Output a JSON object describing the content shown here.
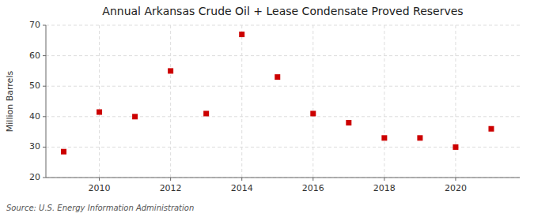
{
  "chart_data": {
    "type": "scatter",
    "title": "Annual Arkansas Crude Oil + Lease Condensate Proved Reserves",
    "y_label": "Million Barrels",
    "annotations": [
      "Source: U.S. Energy Information Administration"
    ],
    "x": [
      2009,
      2010,
      2011,
      2012,
      2013,
      2014,
      2015,
      2016,
      2017,
      2018,
      2019,
      2020,
      2021
    ],
    "values": [
      28.5,
      41.5,
      40.0,
      55.0,
      41.0,
      67.0,
      53.0,
      41.0,
      38.0,
      33.0,
      33.0,
      30.0,
      36.0
    ],
    "color": "#cc0000",
    "marker": "square",
    "xlim": [
      2008.5,
      2021.8
    ],
    "xticks": [
      2010,
      2012,
      2014,
      2016,
      2018,
      2020
    ],
    "ylim": [
      20,
      70
    ],
    "yticks": [
      20,
      30,
      40,
      50,
      60,
      70
    ],
    "grid": true
  }
}
